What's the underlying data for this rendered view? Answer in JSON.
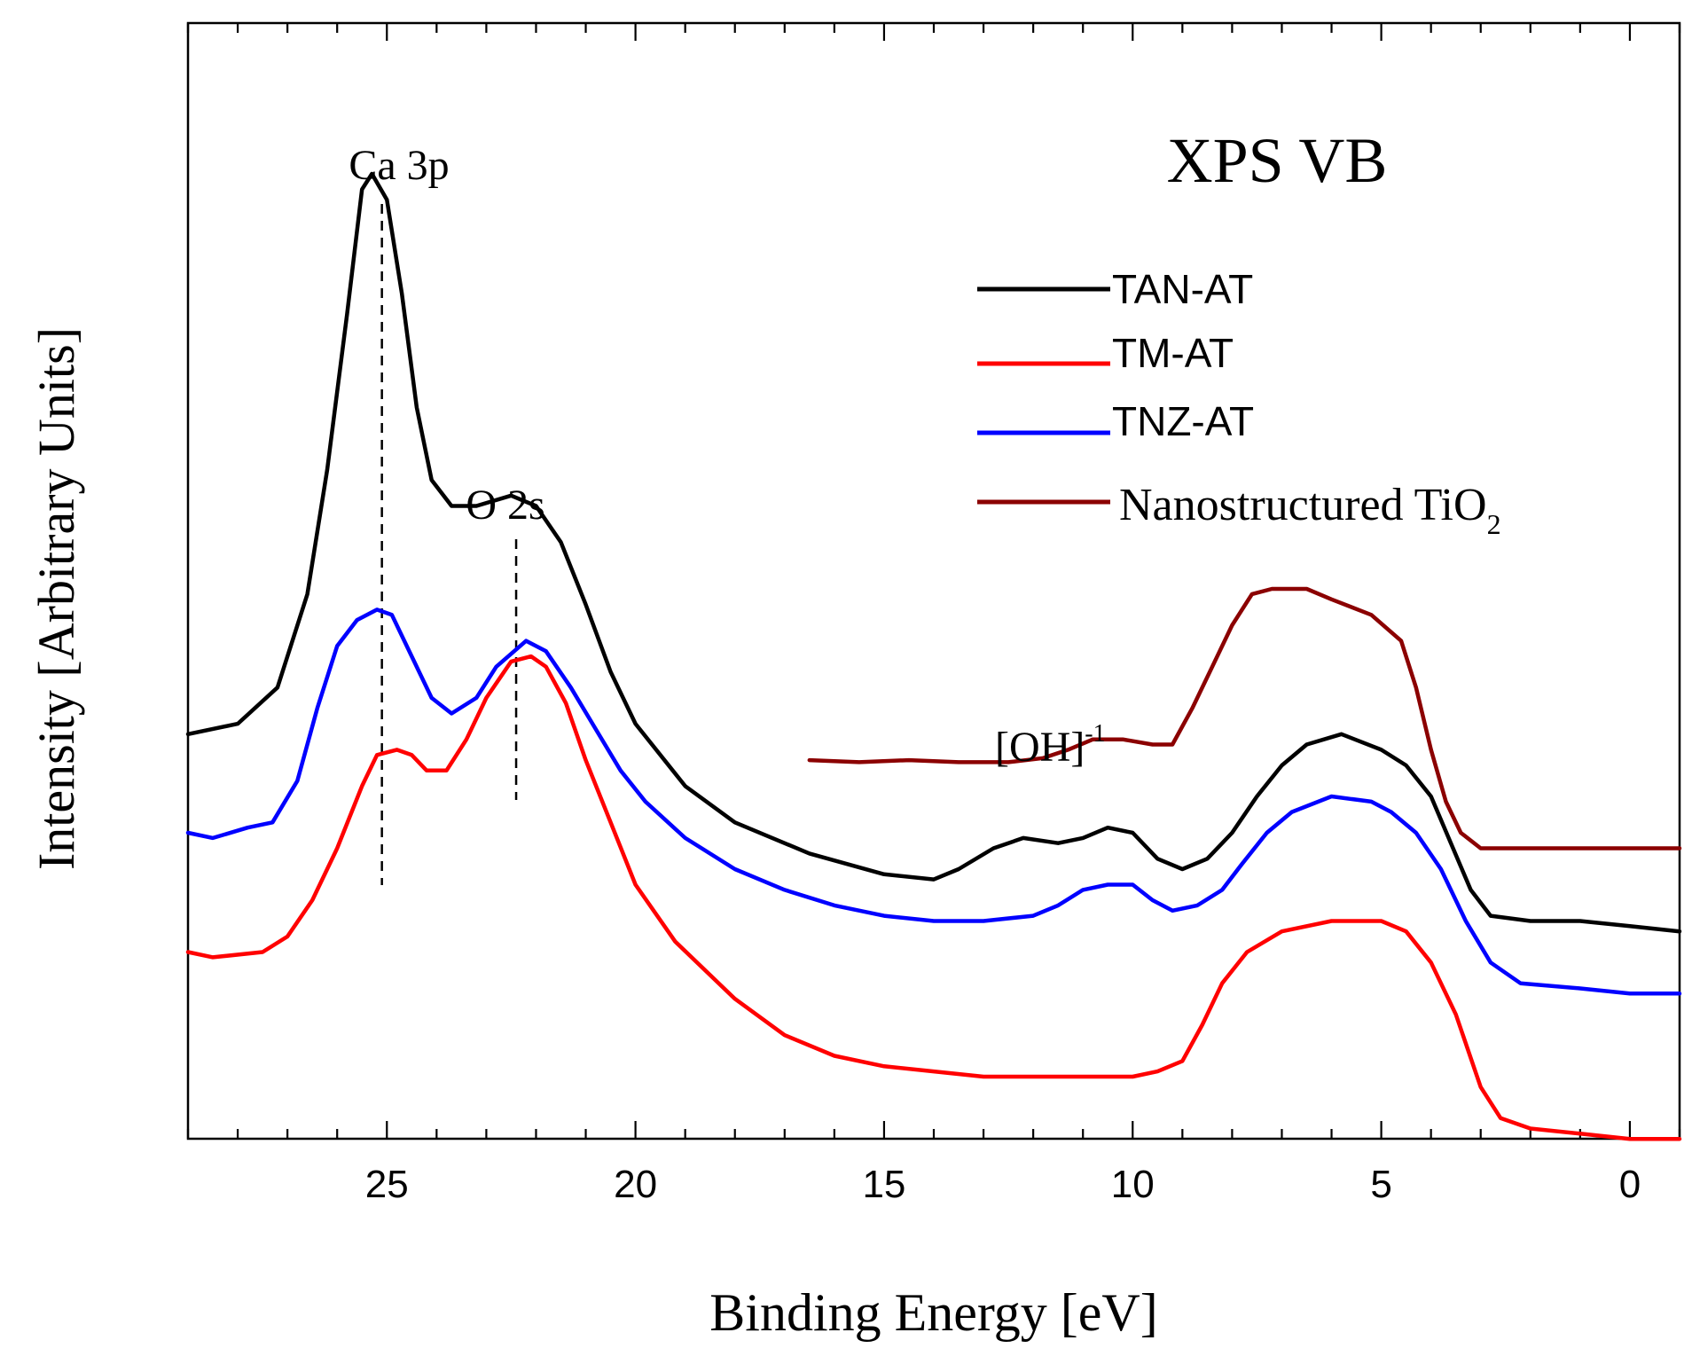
{
  "chart_data": {
    "type": "line",
    "title": "XPS VB",
    "xlabel": "Binding Energy [eV]",
    "ylabel": "Intensity [Arbitrary Units]",
    "xlim": [
      29,
      -1
    ],
    "ylim": [
      0,
      100
    ],
    "x_ticks": [
      25,
      20,
      15,
      10,
      5,
      0
    ],
    "x_tick_labels": [
      "25",
      "20",
      "15",
      "10",
      "5",
      "0"
    ],
    "y_ticks_shown": false,
    "annotations": {
      "ca3p": {
        "text": "Ca 3p",
        "x": 25.1
      },
      "o2s": {
        "text": "O 2s",
        "x": 22.4
      },
      "oh": {
        "base": "[OH]",
        "sup": "-1",
        "x": 10.8
      }
    },
    "legend": {
      "placement": "top-right",
      "entries": [
        {
          "label": "TAN-AT",
          "color": "#000000"
        },
        {
          "label": "TM-AT",
          "color": "#ff0000"
        },
        {
          "label": "TNZ-AT",
          "color": "#0000ff"
        },
        {
          "label": "Nanostructured TiO",
          "sub": "2",
          "color": "#8b0000"
        }
      ]
    },
    "series": [
      {
        "name": "TAN-AT",
        "color": "#000000",
        "points": [
          [
            29,
            39.5
          ],
          [
            28,
            40.5
          ],
          [
            27.2,
            44
          ],
          [
            26.6,
            53
          ],
          [
            26.2,
            65
          ],
          [
            25.8,
            80
          ],
          [
            25.5,
            92
          ],
          [
            25.3,
            93.5
          ],
          [
            25.0,
            91
          ],
          [
            24.7,
            82
          ],
          [
            24.4,
            71
          ],
          [
            24.1,
            64
          ],
          [
            23.7,
            61.5
          ],
          [
            23.2,
            61.5
          ],
          [
            22.5,
            62.5
          ],
          [
            22.0,
            61.5
          ],
          [
            21.5,
            58
          ],
          [
            21.0,
            52
          ],
          [
            20.5,
            45.5
          ],
          [
            20.0,
            40.5
          ],
          [
            19.0,
            34.5
          ],
          [
            18.0,
            31
          ],
          [
            16.5,
            28
          ],
          [
            15.0,
            26
          ],
          [
            14.0,
            25.5
          ],
          [
            13.5,
            26.5
          ],
          [
            12.8,
            28.5
          ],
          [
            12.2,
            29.5
          ],
          [
            11.5,
            29
          ],
          [
            11.0,
            29.5
          ],
          [
            10.5,
            30.5
          ],
          [
            10.0,
            30
          ],
          [
            9.5,
            27.5
          ],
          [
            9.0,
            26.5
          ],
          [
            8.5,
            27.5
          ],
          [
            8.0,
            30
          ],
          [
            7.5,
            33.5
          ],
          [
            7.0,
            36.5
          ],
          [
            6.5,
            38.5
          ],
          [
            5.8,
            39.5
          ],
          [
            5.0,
            38
          ],
          [
            4.5,
            36.5
          ],
          [
            4.0,
            33.5
          ],
          [
            3.6,
            29
          ],
          [
            3.2,
            24.5
          ],
          [
            2.8,
            22
          ],
          [
            2.0,
            21.5
          ],
          [
            1.0,
            21.5
          ],
          [
            0,
            21
          ],
          [
            -1,
            20.5
          ]
        ]
      },
      {
        "name": "TNZ-AT",
        "color": "#0000ff",
        "points": [
          [
            29,
            30
          ],
          [
            28.5,
            29.5
          ],
          [
            27.8,
            30.5
          ],
          [
            27.3,
            31
          ],
          [
            26.8,
            35
          ],
          [
            26.4,
            42
          ],
          [
            26.0,
            48
          ],
          [
            25.6,
            50.5
          ],
          [
            25.2,
            51.5
          ],
          [
            24.9,
            51
          ],
          [
            24.5,
            47
          ],
          [
            24.1,
            43
          ],
          [
            23.7,
            41.5
          ],
          [
            23.2,
            43
          ],
          [
            22.8,
            46
          ],
          [
            22.2,
            48.5
          ],
          [
            21.8,
            47.5
          ],
          [
            21.3,
            44
          ],
          [
            20.8,
            40
          ],
          [
            20.3,
            36
          ],
          [
            19.8,
            33
          ],
          [
            19.0,
            29.5
          ],
          [
            18.0,
            26.5
          ],
          [
            17.0,
            24.5
          ],
          [
            16.0,
            23
          ],
          [
            15.0,
            22
          ],
          [
            14.0,
            21.5
          ],
          [
            13.0,
            21.5
          ],
          [
            12.0,
            22
          ],
          [
            11.5,
            23
          ],
          [
            11.0,
            24.5
          ],
          [
            10.5,
            25
          ],
          [
            10.0,
            25
          ],
          [
            9.6,
            23.5
          ],
          [
            9.2,
            22.5
          ],
          [
            8.7,
            23
          ],
          [
            8.2,
            24.5
          ],
          [
            7.8,
            27
          ],
          [
            7.3,
            30
          ],
          [
            6.8,
            32
          ],
          [
            6.0,
            33.5
          ],
          [
            5.2,
            33
          ],
          [
            4.8,
            32
          ],
          [
            4.3,
            30
          ],
          [
            3.8,
            26.5
          ],
          [
            3.3,
            21.5
          ],
          [
            2.8,
            17.5
          ],
          [
            2.2,
            15.5
          ],
          [
            1.0,
            15
          ],
          [
            0,
            14.5
          ],
          [
            -1,
            14.5
          ]
        ]
      },
      {
        "name": "TM-AT",
        "color": "#ff0000",
        "points": [
          [
            29,
            18.5
          ],
          [
            28.5,
            18
          ],
          [
            27.5,
            18.5
          ],
          [
            27,
            20
          ],
          [
            26.5,
            23.5
          ],
          [
            26.0,
            28.5
          ],
          [
            25.5,
            34.5
          ],
          [
            25.2,
            37.5
          ],
          [
            24.8,
            38
          ],
          [
            24.5,
            37.5
          ],
          [
            24.2,
            36
          ],
          [
            23.8,
            36
          ],
          [
            23.4,
            39
          ],
          [
            23.0,
            43
          ],
          [
            22.5,
            46.5
          ],
          [
            22.1,
            47
          ],
          [
            21.8,
            46
          ],
          [
            21.4,
            42.5
          ],
          [
            21.0,
            37
          ],
          [
            20.5,
            31
          ],
          [
            20.0,
            25
          ],
          [
            19.2,
            19.5
          ],
          [
            18.0,
            14
          ],
          [
            17.0,
            10.5
          ],
          [
            16.0,
            8.5
          ],
          [
            15.0,
            7.5
          ],
          [
            14.0,
            7
          ],
          [
            13.0,
            6.5
          ],
          [
            12.0,
            6.5
          ],
          [
            11.0,
            6.5
          ],
          [
            10.0,
            6.5
          ],
          [
            9.5,
            7
          ],
          [
            9.0,
            8
          ],
          [
            8.6,
            11.5
          ],
          [
            8.2,
            15.5
          ],
          [
            7.7,
            18.5
          ],
          [
            7.0,
            20.5
          ],
          [
            6.0,
            21.5
          ],
          [
            5.0,
            21.5
          ],
          [
            4.5,
            20.5
          ],
          [
            4.0,
            17.5
          ],
          [
            3.5,
            12.5
          ],
          [
            3.0,
            5.5
          ],
          [
            2.6,
            2.5
          ],
          [
            2.0,
            1.5
          ],
          [
            1.0,
            1
          ],
          [
            0,
            0.5
          ],
          [
            -1,
            0.5
          ]
        ]
      },
      {
        "name": "Nanostructured TiO2",
        "color": "#8b0000",
        "points": [
          [
            16.5,
            37
          ],
          [
            15.5,
            36.8
          ],
          [
            14.5,
            37
          ],
          [
            13.5,
            36.8
          ],
          [
            12.5,
            36.8
          ],
          [
            11.8,
            37.2
          ],
          [
            11.3,
            38
          ],
          [
            10.8,
            39
          ],
          [
            10.2,
            39
          ],
          [
            9.6,
            38.5
          ],
          [
            9.2,
            38.5
          ],
          [
            8.8,
            42
          ],
          [
            8.4,
            46
          ],
          [
            8.0,
            50
          ],
          [
            7.6,
            53
          ],
          [
            7.2,
            53.5
          ],
          [
            6.5,
            53.5
          ],
          [
            6.0,
            52.5
          ],
          [
            5.2,
            51
          ],
          [
            4.6,
            48.5
          ],
          [
            4.3,
            44
          ],
          [
            4.0,
            38
          ],
          [
            3.7,
            33
          ],
          [
            3.4,
            30
          ],
          [
            3.0,
            28.5
          ],
          [
            2.0,
            28.5
          ],
          [
            0.0,
            28.5
          ],
          [
            -1,
            28.5
          ]
        ]
      }
    ]
  }
}
